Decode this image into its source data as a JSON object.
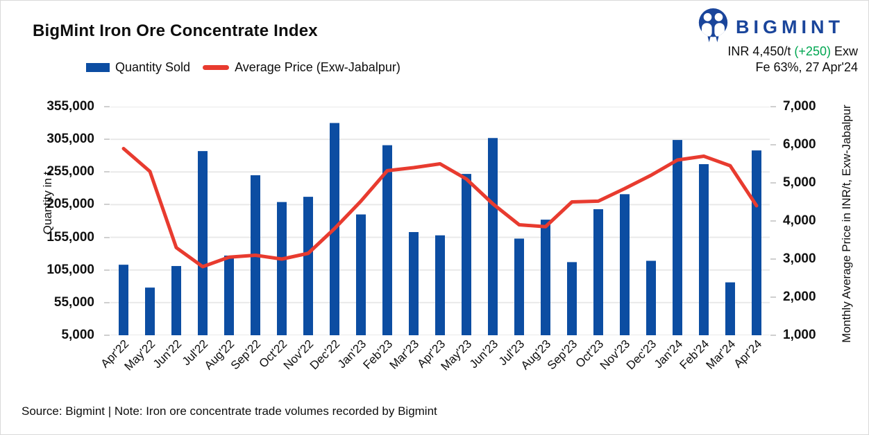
{
  "header": {
    "title": "BigMint Iron Ore Concentrate Index",
    "logo_text": "BIGMINT",
    "price_label": "INR 4,450/t",
    "price_change": "(+250)",
    "price_suffix": "Exw",
    "detail_line": "Fe 63%, 27 Apr'24"
  },
  "legend": [
    {
      "label": "Quantity Sold",
      "type": "bar",
      "color": "#0c4da2"
    },
    {
      "label": "Average Price (Exw-Jabalpur)",
      "type": "line",
      "color": "#e83b2f"
    }
  ],
  "chart_data": {
    "type": "bar",
    "subtype": "bar+line dual axis",
    "grid": true,
    "grid_color": "#e9e9e9",
    "legend_position": "top",
    "categories": [
      "Apr'22",
      "May'22",
      "Jun'22",
      "Jul'22",
      "Aug'22",
      "Sep'22",
      "Oct'22",
      "Nov'22",
      "Dec'22",
      "Jan'23",
      "Feb'23",
      "Mar'23",
      "Apr'23",
      "May'23",
      "Jun'23",
      "Jul'23",
      "Aug'23",
      "Sep'23",
      "Oct'23",
      "Nov'23",
      "Dec'23",
      "Jan'24",
      "Feb'24",
      "Mar'24",
      "Apr'24"
    ],
    "series": [
      {
        "name": "Quantity Sold",
        "type": "bar",
        "axis": "left",
        "color": "#0c4da2",
        "values": [
          113000,
          78000,
          111000,
          287000,
          127000,
          250000,
          209000,
          217000,
          330000,
          190000,
          296000,
          163000,
          158000,
          252000,
          307000,
          153000,
          182000,
          117000,
          198000,
          221000,
          119000,
          304000,
          267000,
          86000,
          288000
        ]
      },
      {
        "name": "Average Price (Exw-Jabalpur)",
        "type": "line",
        "axis": "right",
        "color": "#e83b2f",
        "values": [
          5900,
          5300,
          3300,
          2800,
          3050,
          3100,
          3000,
          3150,
          3800,
          4520,
          5320,
          5400,
          5500,
          5100,
          4450,
          3900,
          3850,
          4500,
          4520,
          4850,
          5200,
          5600,
          5700,
          5450,
          4400
        ]
      }
    ],
    "left_axis": {
      "title": "Quantity in t",
      "min": 5000,
      "max": 355000,
      "ticks": [
        "355,000",
        "305,000",
        "255,000",
        "205,000",
        "155,000",
        "105,000",
        "55,000",
        "5,000"
      ]
    },
    "right_axis": {
      "title": "Monthly Average Price in INR/t, Exw-Jabalpur",
      "min": 1000,
      "max": 7000,
      "ticks": [
        "7,000",
        "6,000",
        "5,000",
        "4,000",
        "3,000",
        "2,000",
        "1,000"
      ]
    }
  },
  "footer": {
    "source_note": "Source: Bigmint | Note: Iron ore concentrate trade volumes recorded by Bigmint"
  },
  "colors": {
    "logo_blue": "#1a459b",
    "bar_blue": "#0c4da2",
    "line_red": "#e83b2f",
    "change_green": "#00a651"
  }
}
